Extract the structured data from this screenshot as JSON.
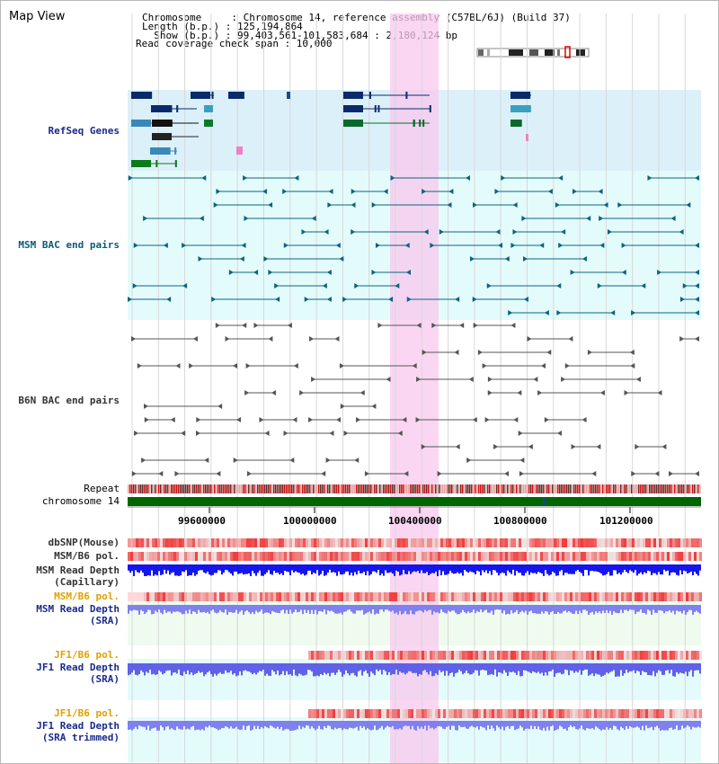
{
  "header": {
    "title": "Map View",
    "chromosome_label": "Chromosome     : Chromosome 14, reference assembly (C57BL/6J) (Build 37)",
    "length_label": "Length (b.p.) : 125,194,864",
    "show_label": "  Show (b.p.) : 99,403,561-101,583,684 : 2,180,124 bp",
    "coverage_label": "Read coverage check span : 10,000"
  },
  "tracks": {
    "refseq": "RefSeq Genes",
    "msm_bac": "MSM BAC end pairs",
    "b6n_bac": "B6N BAC end pairs",
    "repeat": "Repeat",
    "chromosome": "chromosome 14",
    "dbsnp": "dbSNP(Mouse)",
    "msm_b6_pol_1": "MSM/B6 pol.",
    "msm_depth_cap_1": "MSM Read Depth",
    "msm_depth_cap_2": "(Capillary)",
    "msm_b6_pol_2": "MSM/B6 pol.",
    "msm_depth_sra_1": "MSM Read Depth",
    "msm_depth_sra_2": "(SRA)",
    "jf1_b6_pol_1": "JF1/B6 pol.",
    "jf1_depth_sra_1": "JF1 Read Depth",
    "jf1_depth_sra_2": "(SRA)",
    "jf1_b6_pol_2": "JF1/B6 pol.",
    "jf1_depth_trim_1": "JF1 Read Depth",
    "jf1_depth_trim_2": "(SRA trimmed)"
  },
  "ruler": {
    "ticks": [
      "99600000",
      "100000000",
      "100400000",
      "100800000",
      "101200000"
    ]
  },
  "colors": {
    "refseq_bg": "#dcf0fa",
    "bac_bg": "#e4fbfb",
    "highlight": "#f8c8ee",
    "chromosome_bar": "#006600",
    "msm_teal": "#0b6480",
    "b6n_gray": "#555555",
    "snp_red": "#e02020",
    "depth_blue": "#1515ee",
    "depth_light_blue": "#8080ee"
  }
}
